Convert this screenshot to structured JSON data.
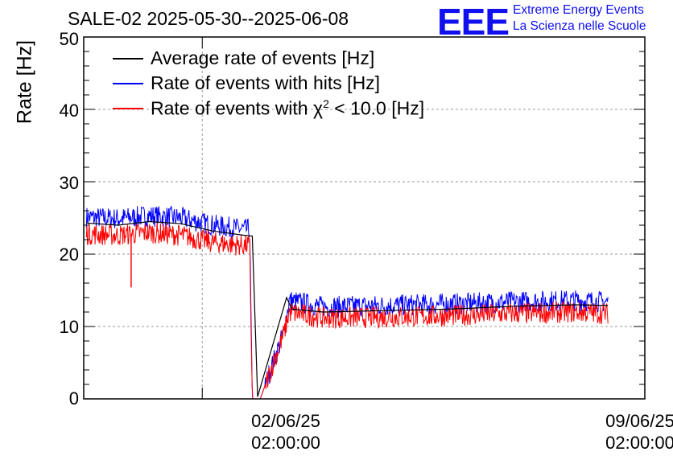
{
  "header": {
    "title": "SALE-02 2025-05-30--2025-06-08",
    "logo_text": "EEE",
    "logo_line1": "Extreme Energy Events",
    "logo_line2": "La Scienza nelle Scuole"
  },
  "colors": {
    "average": "#000000",
    "hits": "#0000ff",
    "chi2": "#ff0000",
    "grid": "#9a9a9a",
    "logo": "#1010ee"
  },
  "chart_data": {
    "type": "line",
    "title": "SALE-02 2025-05-30--2025-06-08",
    "ylabel": "Rate [Hz]",
    "xlabel": "",
    "ylim": [
      0,
      50
    ],
    "xlim": [
      "2025-05-31T05:00:00",
      "2025-06-09T02:00:00"
    ],
    "grid": true,
    "legend_position": "top-left",
    "yticks": [
      0,
      10,
      20,
      30,
      40,
      50
    ],
    "xticks": [
      {
        "x": "2025-06-02T02:00:00",
        "line1": "02/06/25",
        "line2": "02:00:00"
      },
      {
        "x": "2025-06-09T02:00:00",
        "line1": "09/06/25",
        "line2": "02:00:00"
      }
    ],
    "legend": [
      {
        "key": "average",
        "label": "Average rate of events [Hz]"
      },
      {
        "key": "hits",
        "label": "Rate of events with hits [Hz]"
      },
      {
        "key": "chi2",
        "label": "Rate of events with χ² < 10.0 [Hz]",
        "label_pre": "Rate of events with χ",
        "label_sup": "2",
        "label_post": " < 10.0 [Hz]"
      }
    ],
    "series": [
      {
        "name": "Average rate of events [Hz]",
        "key": "average",
        "points": [
          [
            "2025-05-31T06:00:00",
            24.3
          ],
          [
            "2025-05-31T18:00:00",
            24.0
          ],
          [
            "2025-06-01T06:00:00",
            24.5
          ],
          [
            "2025-06-01T18:00:00",
            24.2
          ],
          [
            "2025-06-02T06:00:00",
            23.2
          ],
          [
            "2025-06-02T18:00:00",
            22.6
          ],
          [
            "2025-06-02T21:00:00",
            22.5
          ],
          [
            "2025-06-02T23:00:00",
            0.3
          ],
          [
            "2025-06-03T10:00:00",
            14.0
          ],
          [
            "2025-06-03T12:00:00",
            12.4
          ],
          [
            "2025-06-04T00:00:00",
            12.0
          ],
          [
            "2025-06-05T00:00:00",
            12.2
          ],
          [
            "2025-06-06T00:00:00",
            12.4
          ],
          [
            "2025-06-07T00:00:00",
            12.8
          ],
          [
            "2025-06-08T00:00:00",
            13.0
          ],
          [
            "2025-06-08T12:00:00",
            12.9
          ]
        ]
      },
      {
        "name": "Rate of events with hits [Hz]",
        "key": "hits",
        "band": 1.5,
        "points": [
          [
            "2025-05-31T06:00:00",
            25.1
          ],
          [
            "2025-05-31T18:00:00",
            24.9
          ],
          [
            "2025-06-01T06:00:00",
            25.3
          ],
          [
            "2025-06-01T18:00:00",
            25.0
          ],
          [
            "2025-06-02T06:00:00",
            24.0
          ],
          [
            "2025-06-02T18:00:00",
            23.4
          ],
          [
            "2025-06-02T20:00:00",
            23.4
          ],
          [
            "2025-06-02T21:00:00",
            0.0
          ],
          [
            "2025-06-03T00:00:00",
            0.0
          ],
          [
            "2025-06-03T09:00:00",
            9.2
          ],
          [
            "2025-06-03T11:00:00",
            13.6
          ],
          [
            "2025-06-04T00:00:00",
            12.7
          ],
          [
            "2025-06-05T00:00:00",
            12.9
          ],
          [
            "2025-06-06T00:00:00",
            13.1
          ],
          [
            "2025-06-07T00:00:00",
            13.4
          ],
          [
            "2025-06-08T00:00:00",
            13.6
          ],
          [
            "2025-06-08T12:00:00",
            13.4
          ]
        ]
      },
      {
        "name": "Rate of events with χ² < 10.0 [Hz]",
        "key": "chi2",
        "band": 1.5,
        "points": [
          [
            "2025-05-31T06:00:00",
            22.8
          ],
          [
            "2025-05-31T18:00:00",
            22.6
          ],
          [
            "2025-06-01T06:00:00",
            23.0
          ],
          [
            "2025-06-01T18:00:00",
            22.6
          ],
          [
            "2025-06-02T06:00:00",
            21.6
          ],
          [
            "2025-06-02T18:00:00",
            21.2
          ],
          [
            "2025-06-02T20:00:00",
            21.2
          ],
          [
            "2025-06-02T21:00:00",
            0.0
          ],
          [
            "2025-06-03T00:00:00",
            0.0
          ],
          [
            "2025-06-03T09:00:00",
            9.0
          ],
          [
            "2025-06-03T11:00:00",
            12.0
          ],
          [
            "2025-06-04T00:00:00",
            11.2
          ],
          [
            "2025-06-05T00:00:00",
            11.3
          ],
          [
            "2025-06-06T00:00:00",
            11.5
          ],
          [
            "2025-06-07T00:00:00",
            11.8
          ],
          [
            "2025-06-08T00:00:00",
            12.0
          ],
          [
            "2025-06-08T12:00:00",
            11.8
          ]
        ],
        "spikes": [
          [
            "2025-05-31T23:00:00",
            15.4
          ]
        ]
      }
    ]
  }
}
